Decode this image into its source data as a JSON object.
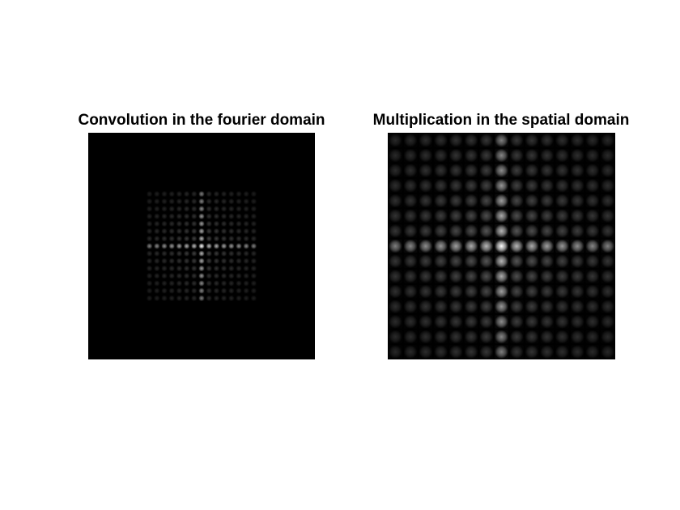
{
  "figure": {
    "background": "#ffffff",
    "panels": [
      {
        "title": "Convolution in the fourier domain",
        "image": "Fourier-domain convolution result: small grid of faint rectangular sinc-like lobes, bright central peak with horizontal and vertical bright band, on black background"
      },
      {
        "title": "Multiplication in the spatial domain",
        "image": "Spatial-domain multiplication result: grid of sinc-like lobes filling the full frame, bright central peak with horizontal and vertical bright band"
      }
    ]
  }
}
